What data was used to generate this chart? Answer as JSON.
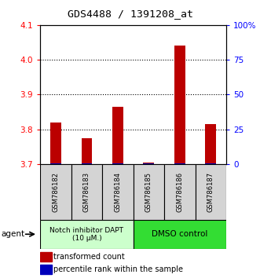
{
  "title": "GDS4488 / 1391208_at",
  "samples": [
    "GSM786182",
    "GSM786183",
    "GSM786184",
    "GSM786185",
    "GSM786186",
    "GSM786187"
  ],
  "red_values": [
    3.82,
    3.775,
    3.865,
    3.705,
    4.04,
    3.815
  ],
  "blue_values": [
    3.703,
    3.702,
    3.703,
    3.701,
    3.703,
    3.702
  ],
  "ylim_left": [
    3.7,
    4.1
  ],
  "ylim_right": [
    0,
    100
  ],
  "yticks_left": [
    3.7,
    3.8,
    3.9,
    4.0,
    4.1
  ],
  "yticks_right": [
    0,
    25,
    50,
    75,
    100
  ],
  "ytick_labels_right": [
    "0",
    "25",
    "50",
    "75",
    "100%"
  ],
  "group1_label": "Notch inhibitor DAPT\n(10 μM.)",
  "group2_label": "DMSO control",
  "group1_color": "#ccffcc",
  "group2_color": "#33dd33",
  "sample_box_color": "#d4d4d4",
  "bar_color_red": "#bb0000",
  "bar_color_blue": "#0000bb",
  "bar_width": 0.35,
  "legend_red": "transformed count",
  "legend_blue": "percentile rank within the sample",
  "agent_label": "agent",
  "base_value": 3.7,
  "grid_lines": [
    3.8,
    3.9,
    4.0
  ]
}
